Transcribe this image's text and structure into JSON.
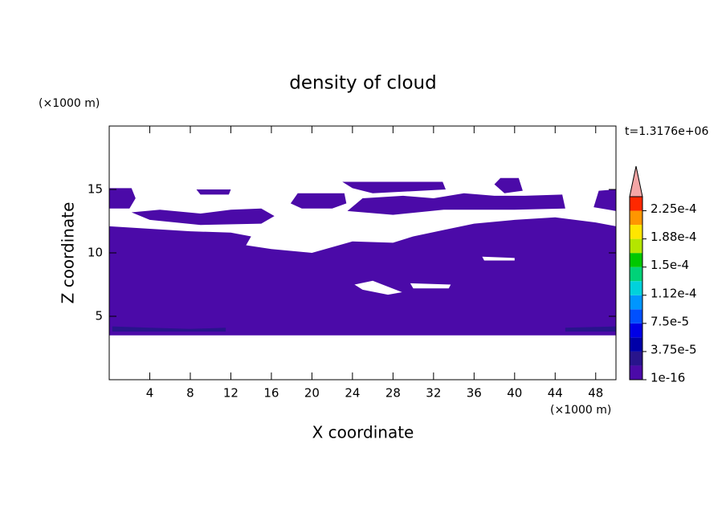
{
  "chart_data": {
    "type": "contour",
    "title": "density of cloud",
    "x_label": "X coordinate",
    "y_label": "Z coordinate",
    "x_unit": "(×1000 m)",
    "y_unit": "(×1000 m)",
    "time_label": "t=1.3176e+06",
    "xlim": [
      0,
      50
    ],
    "ylim": [
      0,
      20
    ],
    "xticks": [
      4,
      8,
      12,
      16,
      20,
      24,
      28,
      32,
      36,
      40,
      44,
      48
    ],
    "yticks": [
      5,
      10,
      15
    ],
    "colorbar": {
      "levels": [
        1e-16,
        1.875e-05,
        3.75e-05,
        5.625e-05,
        7.5e-05,
        9.375e-05,
        0.0001125,
        0.00013125,
        0.00015,
        0.00016875,
        0.0001875,
        0.00020625,
        0.000225
      ],
      "colors": [
        "#4b0aa8",
        "#28148c",
        "#0000a8",
        "#0000e6",
        "#0050ff",
        "#0096ff",
        "#00d2dc",
        "#00d278",
        "#00c800",
        "#b4e600",
        "#ffe600",
        "#ff9600",
        "#ff2800"
      ],
      "clim": [
        0,
        0.00024375
      ],
      "ticks": [
        {
          "value": 1e-16,
          "label": "1e-16"
        },
        {
          "value": 3.75e-05,
          "label": "3.75e-5"
        },
        {
          "value": 7.5e-05,
          "label": "7.5e-5"
        },
        {
          "value": 0.0001125,
          "label": "1.12e-4"
        },
        {
          "value": 0.00015,
          "label": "1.5e-4"
        },
        {
          "value": 0.0001875,
          "label": "1.88e-4"
        },
        {
          "value": 0.000225,
          "label": "2.25e-4"
        }
      ],
      "extend_color": "#f4a6a6"
    },
    "regions": [
      {
        "level": 1e-16,
        "x": [
          0,
          50,
          50,
          48,
          44,
          40,
          36,
          33,
          30,
          28,
          24,
          20,
          16,
          13.5,
          14,
          12,
          8,
          4,
          0
        ],
        "y": [
          3.5,
          3.5,
          12.1,
          12.4,
          12.8,
          12.6,
          12.3,
          11.8,
          11.3,
          10.8,
          10.9,
          10.0,
          10.3,
          10.6,
          11.3,
          11.6,
          11.7,
          11.9,
          12.1
        ]
      },
      {
        "level": 1e-16,
        "x": [
          0,
          0,
          2.2,
          2.6,
          2
        ],
        "y": [
          13.5,
          15.1,
          15.1,
          14.3,
          13.5
        ]
      },
      {
        "level": 1e-16,
        "x": [
          2.2,
          5,
          9,
          12,
          15,
          16.3,
          15,
          9,
          4
        ],
        "y": [
          13.2,
          13.4,
          13.1,
          13.4,
          13.5,
          12.9,
          12.3,
          12.2,
          12.6
        ]
      },
      {
        "level": 1e-16,
        "x": [
          17.9,
          18.6,
          23.2,
          23.4,
          22,
          19
        ],
        "y": [
          13.9,
          14.7,
          14.7,
          13.9,
          13.5,
          13.5
        ]
      },
      {
        "level": 1e-16,
        "x": [
          23,
          32.9,
          33.2,
          26,
          24
        ],
        "y": [
          15.6,
          15.6,
          15.0,
          14.7,
          15.1
        ]
      },
      {
        "level": 1e-16,
        "x": [
          23.5,
          25,
          29,
          32,
          35,
          38,
          41,
          44.7,
          45,
          40,
          33,
          28
        ],
        "y": [
          13.3,
          14.3,
          14.5,
          14.3,
          14.7,
          14.5,
          14.5,
          14.6,
          13.5,
          13.4,
          13.4,
          13.0
        ]
      },
      {
        "level": 1e-16,
        "x": [
          38,
          38.6,
          40.4,
          40.8,
          39
        ],
        "y": [
          15.4,
          15.9,
          15.9,
          14.9,
          14.7
        ]
      },
      {
        "level": 1e-16,
        "x": [
          47.8,
          48.3,
          50,
          50
        ],
        "y": [
          13.6,
          14.9,
          15.0,
          13.3
        ]
      },
      {
        "level": 1e-16,
        "x": [
          8.6,
          12,
          11.8,
          9
        ],
        "y": [
          15.0,
          15.0,
          14.6,
          14.6
        ]
      },
      {
        "level": 1.875e-05,
        "x": [
          0.3,
          4,
          8,
          11.5,
          11.5,
          8,
          4,
          0.3
        ],
        "y": [
          3.8,
          3.8,
          3.8,
          3.8,
          4.1,
          4.0,
          4.1,
          4.2
        ]
      },
      {
        "level": 1.875e-05,
        "x": [
          45,
          50,
          50,
          45
        ],
        "y": [
          3.8,
          3.8,
          4.2,
          4.1
        ]
      }
    ],
    "gaps": [
      {
        "x": [
          24.2,
          26,
          28.9,
          27.5,
          25
        ],
        "y": [
          7.5,
          7.8,
          6.9,
          6.7,
          7.1
        ]
      },
      {
        "x": [
          29.7,
          33.7,
          33.5,
          30
        ],
        "y": [
          7.6,
          7.5,
          7.2,
          7.2
        ]
      },
      {
        "x": [
          36.8,
          40,
          40,
          37
        ],
        "y": [
          9.7,
          9.6,
          9.4,
          9.4
        ]
      }
    ]
  }
}
